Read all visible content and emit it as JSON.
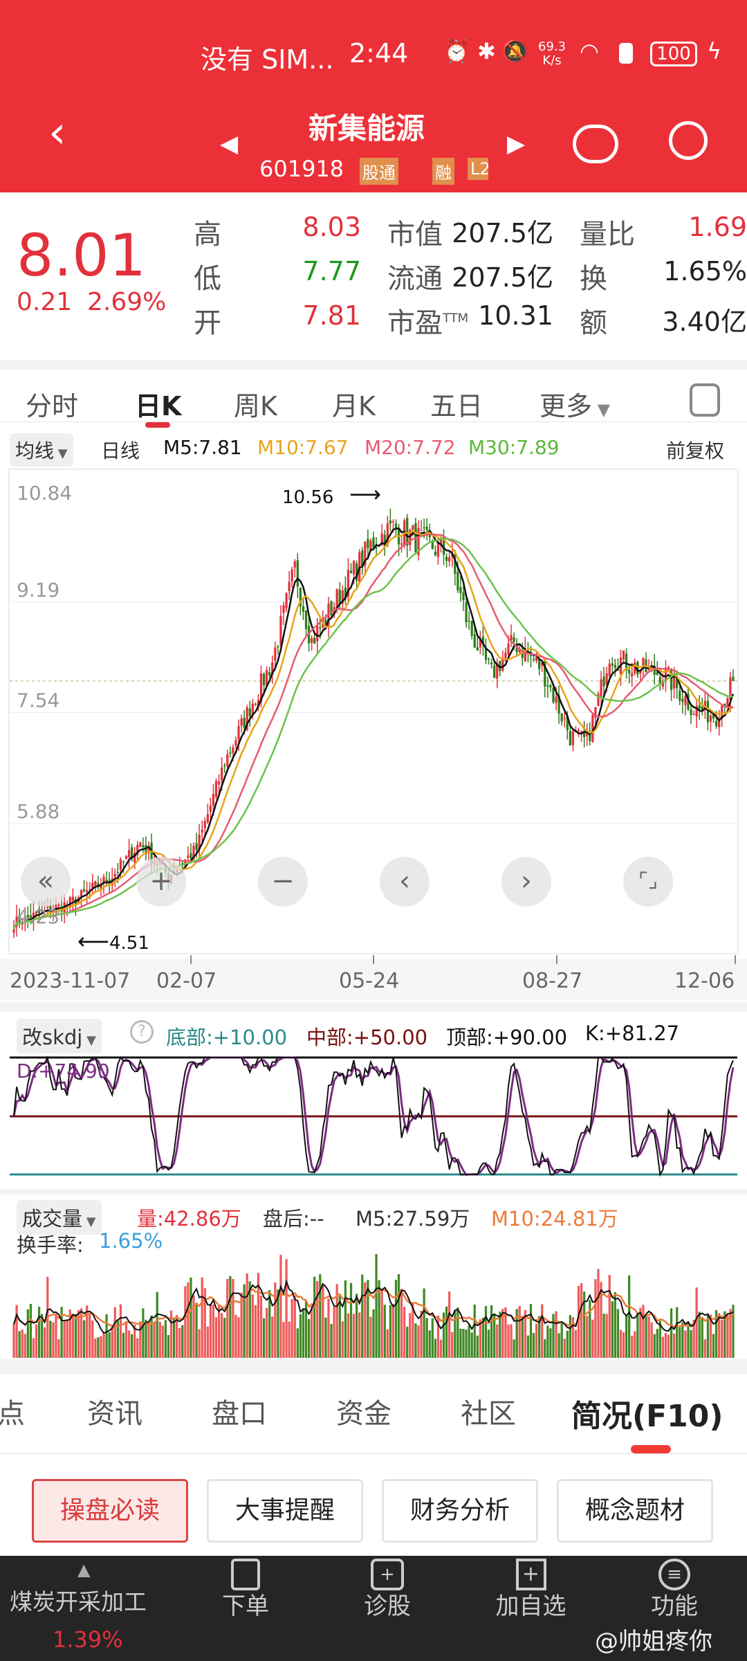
{
  "status_bar": {
    "carrier": "没有 SIM...",
    "time": "2:44",
    "net_speed_top": "69.3",
    "net_speed_unit": "K/s",
    "battery": "100",
    "icons": [
      "alarm-icon",
      "bluetooth-icon",
      "mute-icon",
      "wifi-icon",
      "alert-icon",
      "battery-icon",
      "charging-icon"
    ]
  },
  "header": {
    "title": "新集能源",
    "code": "601918",
    "badges": [
      "股通",
      "融",
      "L2"
    ],
    "icons": [
      "back-icon",
      "prev-stock-icon",
      "next-stock-icon",
      "robot-icon",
      "search-icon"
    ]
  },
  "quote": {
    "price": "8.01",
    "change": "0.21",
    "change_pct": "2.69%",
    "rows": [
      {
        "l1": "高",
        "v1": "8.03",
        "l2": "市值",
        "v2": "207.5亿",
        "l3": "量比",
        "v3": "1.69"
      },
      {
        "l1": "低",
        "v1": "7.77",
        "l2": "流通",
        "v2": "207.5亿",
        "l3": "换",
        "v3": "1.65%"
      },
      {
        "l1": "开",
        "v1": "7.81",
        "l2": "市盈",
        "l2sup": "TTM",
        "v2": "10.31",
        "l3": "额",
        "v3": "3.40亿"
      }
    ]
  },
  "tabs": [
    "分时",
    "日K",
    "周K",
    "月K",
    "五日",
    "更多"
  ],
  "active_tab": "日K",
  "legend": {
    "selector": "均线",
    "period": "日线",
    "m5": "M5:7.81",
    "m10": "M10:7.67",
    "m20": "M20:7.72",
    "m30": "M30:7.89",
    "adjust": "前复权"
  },
  "colors": {
    "up": "#e2313b",
    "down": "#2e7d1a",
    "m5": "#111111",
    "m10": "#e8a317",
    "m20": "#e85a73",
    "m30": "#6cc24a",
    "header": "#ec3038"
  },
  "chart_data": {
    "type": "candlestick",
    "y_ticks": [
      "10.84",
      "9.19",
      "7.54",
      "5.88",
      "4.23"
    ],
    "ylim": [
      4.23,
      10.84
    ],
    "x_ticks": [
      "2023-11-07",
      "02-07",
      "05-24",
      "08-27",
      "12-06"
    ],
    "max_label": "10.56",
    "min_label": "4.51",
    "last_close": 8.01,
    "close_path": [
      [
        0,
        4.4
      ],
      [
        20,
        4.7
      ],
      [
        35,
        5.1
      ],
      [
        45,
        5.6
      ],
      [
        55,
        5.1
      ],
      [
        65,
        5.5
      ],
      [
        75,
        6.8
      ],
      [
        85,
        7.7
      ],
      [
        92,
        8.3
      ],
      [
        100,
        9.7
      ],
      [
        106,
        8.6
      ],
      [
        116,
        9.3
      ],
      [
        128,
        10.1
      ],
      [
        135,
        10.3
      ],
      [
        145,
        10.1
      ],
      [
        155,
        9.9
      ],
      [
        162,
        8.8
      ],
      [
        170,
        8.1
      ],
      [
        178,
        8.6
      ],
      [
        188,
        8.2
      ],
      [
        198,
        7.2
      ],
      [
        204,
        7.1
      ],
      [
        212,
        8.4
      ],
      [
        222,
        8.2
      ],
      [
        232,
        8.1
      ],
      [
        242,
        7.6
      ],
      [
        250,
        7.5
      ],
      [
        256,
        8.01
      ]
    ]
  },
  "kdj": {
    "selector": "改skdj",
    "bottom": "底部:+10.00",
    "middle": "中部:+50.00",
    "top": "顶部:+90.00",
    "k": "K:+81.27",
    "d": "D:+74.90"
  },
  "volume": {
    "selector": "成交量",
    "vol": "量:42.86万",
    "after_hours": "盘后:--",
    "m5": "M5:27.59万",
    "m10": "M10:24.81万",
    "turnover_label": "换手率:",
    "turnover": "1.65%"
  },
  "controls": [
    "rewind-icon",
    "zoom-in-icon",
    "zoom-out-icon",
    "scroll-left-icon",
    "scroll-right-icon",
    "fullscreen-icon"
  ],
  "bottom_tabs": [
    "点",
    "资讯",
    "盘口",
    "资金",
    "社区",
    "简况(F10)"
  ],
  "active_bottom_tab": "简况(F10)",
  "sub_buttons": [
    "操盘必读",
    "大事提醒",
    "财务分析",
    "概念题材"
  ],
  "nav": {
    "sector": "煤炭开采加工",
    "sector_pct": "1.39%",
    "items": [
      "下单",
      "诊股",
      "加自选",
      "功能"
    ]
  },
  "watermark": "@帅姐疼你"
}
